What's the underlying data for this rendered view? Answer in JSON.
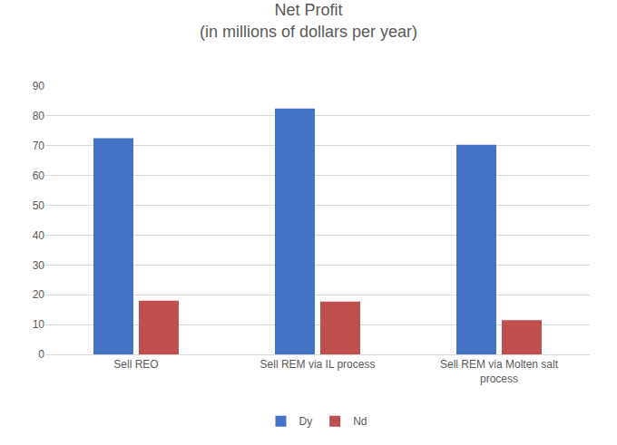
{
  "chart_data": {
    "type": "bar",
    "title": "Net Profit",
    "subtitle": "(in millions of dollars per year)",
    "categories": [
      "Sell REO",
      "Sell REM via IL process",
      "Sell REM via Molten salt process"
    ],
    "series": [
      {
        "name": "Dy",
        "color": "#4472C4",
        "values": [
          72.5,
          82.5,
          70.3
        ]
      },
      {
        "name": "Nd",
        "color": "#C0504D",
        "values": [
          18,
          17.7,
          11.5
        ]
      }
    ],
    "ylim": [
      0,
      90
    ],
    "yticks": [
      0,
      10,
      20,
      30,
      40,
      50,
      60,
      70,
      80,
      90
    ],
    "grid": true,
    "legend": "bottom"
  }
}
